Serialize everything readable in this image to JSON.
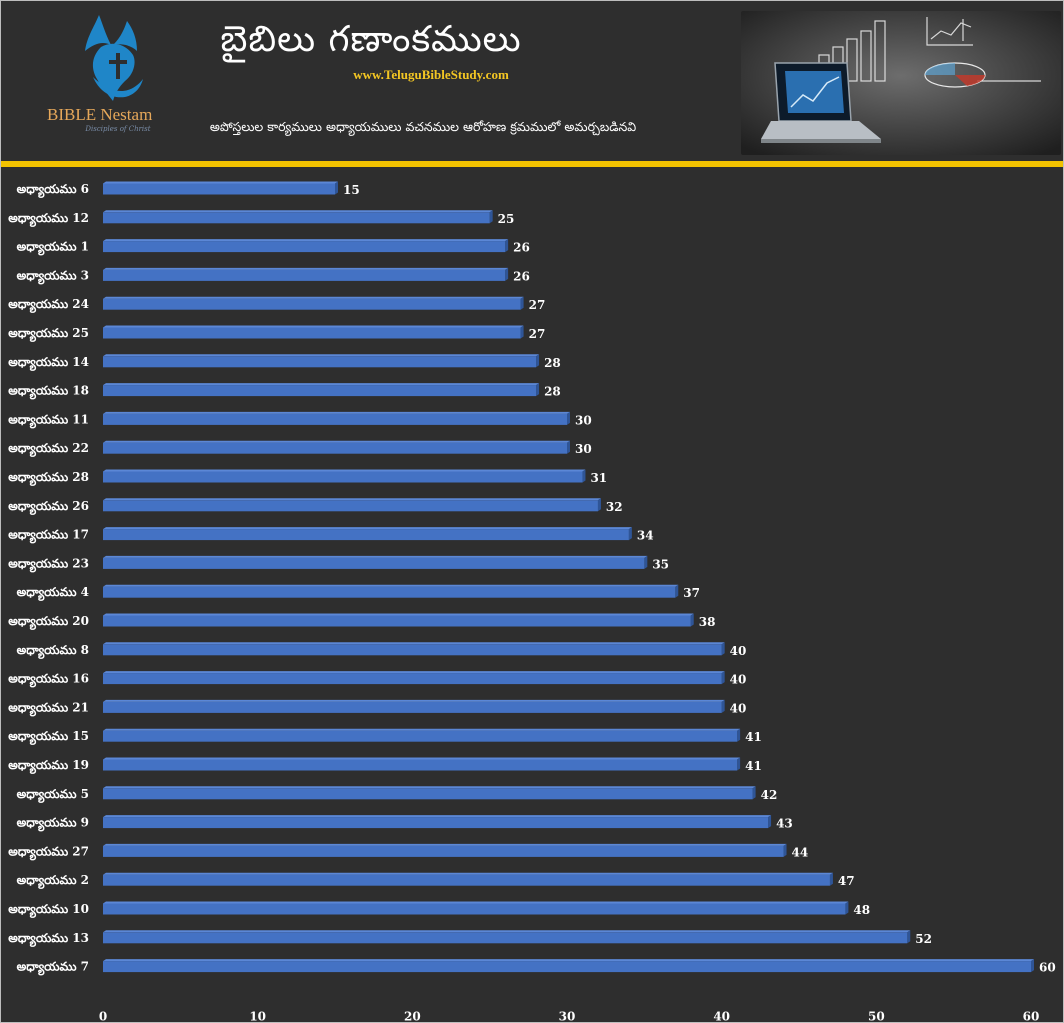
{
  "header": {
    "title": "బైబిలు గణాంకములు",
    "site": "www.TeluguBibleStudy.com",
    "subtitle": "అపోస్తలుల కార్యములు అధ్యాయములు వచనముల ఆరోహణ క్రమములో అమర్చబడినవి",
    "brand_name": "BIBLE Nestam",
    "brand_tagline": "Disciples of Christ"
  },
  "colors": {
    "background": "#2e2e2e",
    "bar": "#4472c4",
    "bar_top": "#5b87d6",
    "divider": "#f2c200",
    "site_text": "#f3c623",
    "logo_blue": "#1f86c8"
  },
  "chart_data": {
    "type": "bar",
    "orientation": "horizontal",
    "categories": [
      "అధ్యాయము 6",
      "అధ్యాయము 12",
      "అధ్యాయము 1",
      "అధ్యాయము 3",
      "అధ్యాయము 24",
      "అధ్యాయము 25",
      "అధ్యాయము 14",
      "అధ్యాయము 18",
      "అధ్యాయము 11",
      "అధ్యాయము 22",
      "అధ్యాయము 28",
      "అధ్యాయము 26",
      "అధ్యాయము 17",
      "అధ్యాయము 23",
      "అధ్యాయము 4",
      "అధ్యాయము 20",
      "అధ్యాయము 8",
      "అధ్యాయము 16",
      "అధ్యాయము 21",
      "అధ్యాయము 15",
      "అధ్యాయము 19",
      "అధ్యాయము 5",
      "అధ్యాయము 9",
      "అధ్యాయము 27",
      "అధ్యాయము 2",
      "అధ్యాయము 10",
      "అధ్యాయము 13",
      "అధ్యాయము 7"
    ],
    "values": [
      15,
      25,
      26,
      26,
      27,
      27,
      28,
      28,
      30,
      30,
      31,
      32,
      34,
      35,
      37,
      38,
      40,
      40,
      40,
      41,
      41,
      42,
      43,
      44,
      47,
      48,
      52,
      60
    ],
    "xlim": [
      0,
      60
    ],
    "xticks": [
      0,
      10,
      20,
      30,
      40,
      50,
      60
    ],
    "data_labels": true,
    "grid": false,
    "legend": "none"
  }
}
